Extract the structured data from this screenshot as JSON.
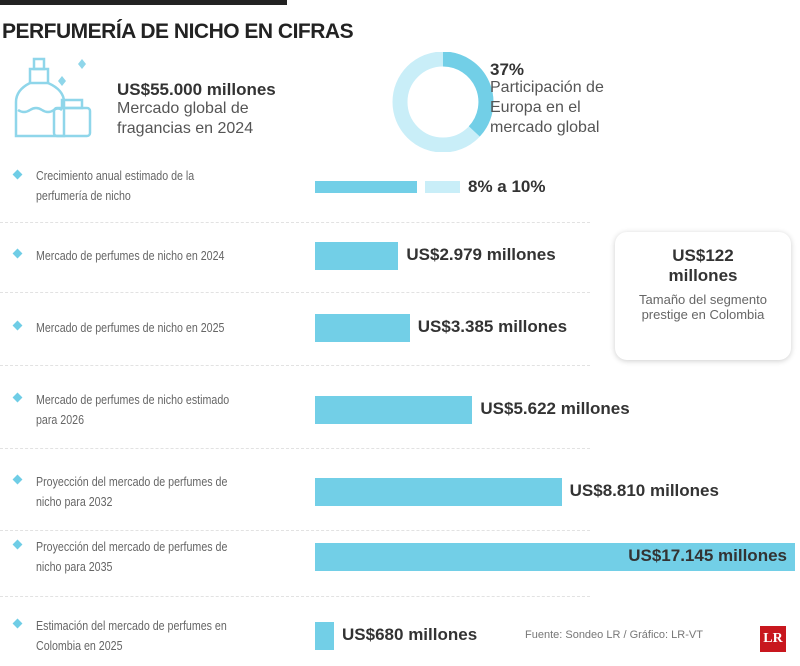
{
  "title": "PERFUMERÍA DE NICHO EN CIFRAS",
  "global_market": {
    "value": "US$55.000 millones",
    "desc_line1": "Mercado global de",
    "desc_line2": "fragancias en 2024",
    "icon": "perfume-bottle-icon"
  },
  "europe_share": {
    "value": "37%",
    "percent": 37,
    "desc_line1": "Participación de",
    "desc_line2": "Europa en el",
    "desc_line3": "mercado global"
  },
  "growth": {
    "label_line1": "Crecimiento anual estimado de la",
    "label_line2": "perfumería de nicho",
    "value": "8% a 10%",
    "low": 8,
    "high": 10
  },
  "callout": {
    "value_line1": "US$122",
    "value_line2": "millones",
    "desc_line1": "Tamaño del segmento",
    "desc_line2": "prestige en Colombia"
  },
  "colors": {
    "bar": "#72cfe7",
    "bar_light": "#c9eef8",
    "logo": "#c8171e"
  },
  "chart_data": {
    "type": "bar",
    "orientation": "horizontal",
    "unit": "US$ millones",
    "categories": [
      [
        "Mercado de perfumes de nicho en 2024",
        ""
      ],
      [
        "Mercado de perfumes de nicho en 2025",
        ""
      ],
      [
        "Mercado de perfumes de nicho estimado",
        "para 2026"
      ],
      [
        "Proyección del mercado de perfumes de",
        "nicho para 2032"
      ],
      [
        "Proyección del mercado de perfumes de",
        "nicho para 2035"
      ],
      [
        "Estimación del mercado de perfumes en",
        "Colombia en 2025"
      ]
    ],
    "values": [
      2979,
      3385,
      5622,
      8810,
      17145,
      680
    ],
    "labels": [
      "US$2.979 millones",
      "US$3.385 millones",
      "US$5.622 millones",
      "US$8.810 millones",
      "US$17.145 millones",
      "US$680 millones"
    ]
  },
  "source": "Fuente: Sondeo LR / Gráfico: LR-VT",
  "logo": "LR"
}
